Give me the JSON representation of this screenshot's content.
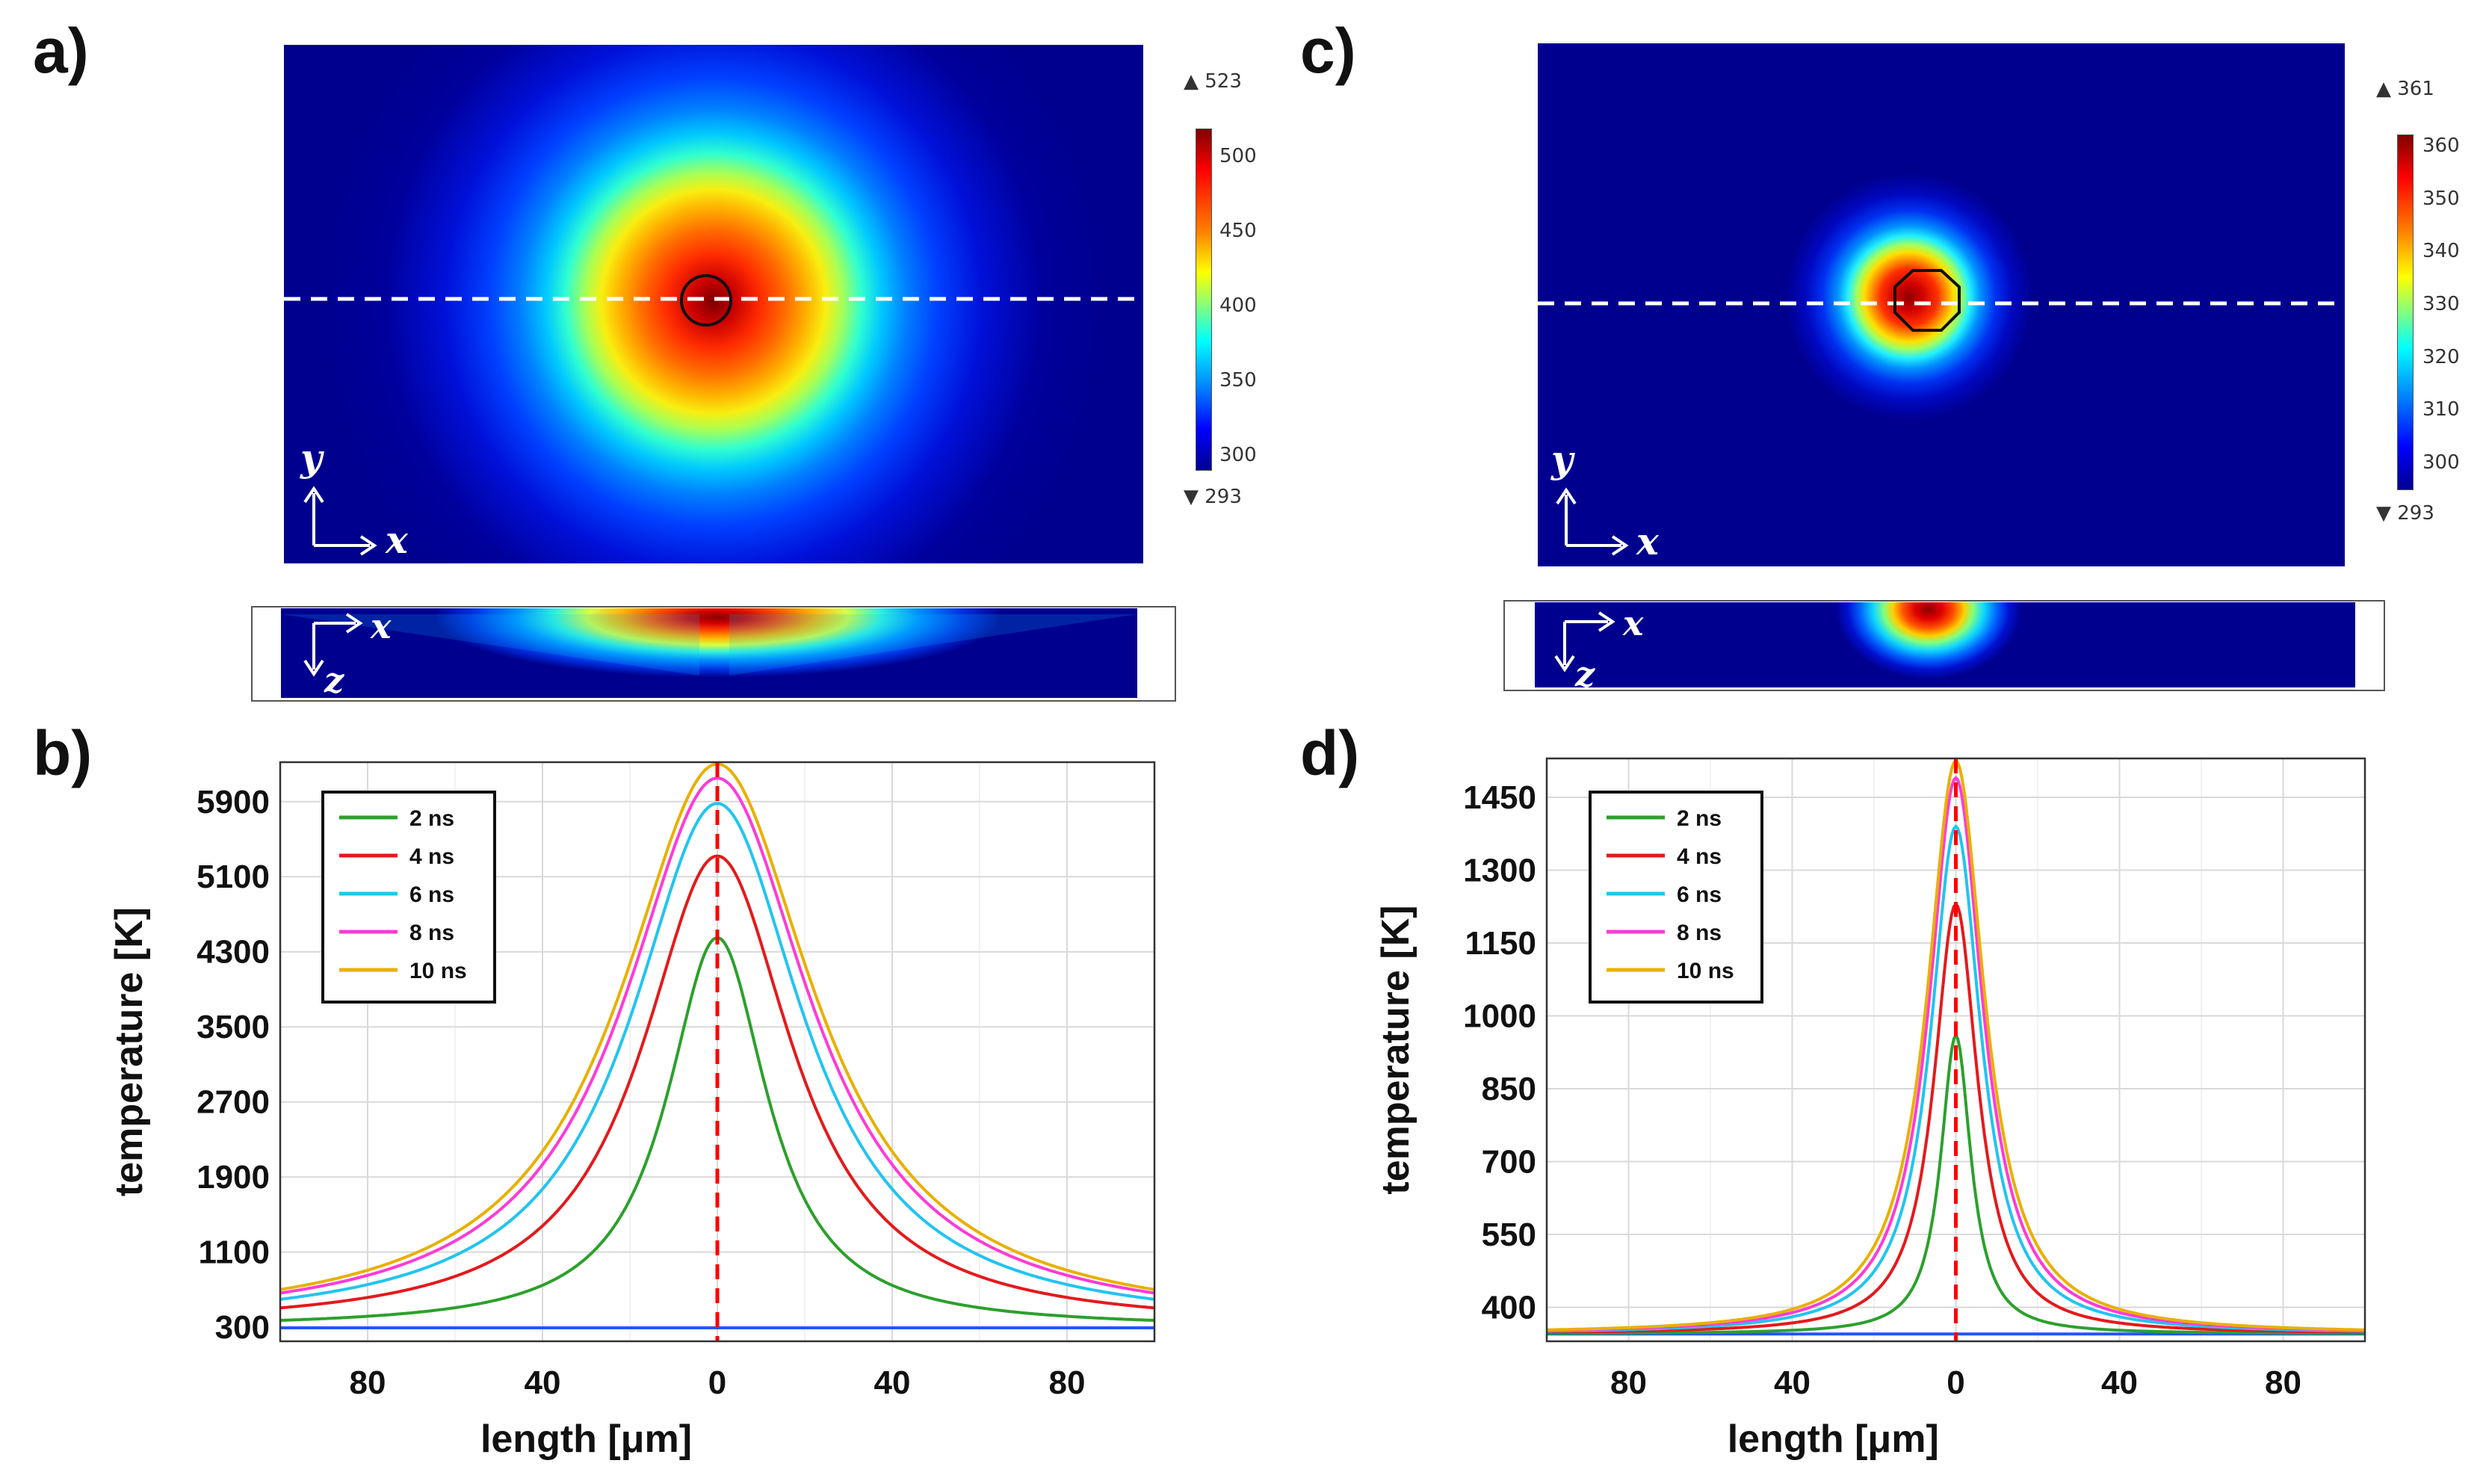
{
  "panels": {
    "a": {
      "label": "a)"
    },
    "b": {
      "label": "b)"
    },
    "c": {
      "label": "c)"
    },
    "d": {
      "label": "d)"
    }
  },
  "colors": {
    "cold": "#00008f",
    "axis_white": "#ffffff",
    "dashed": "#ffffff",
    "center_line": "#ff0000",
    "baseline": "#2255ff"
  },
  "maps": {
    "a": {
      "colorbar": {
        "max_label": "▲ 523",
        "min_label": "▼ 293",
        "ticks": [
          "500",
          "450",
          "400",
          "350",
          "300"
        ]
      },
      "top_axes": {
        "y": "y",
        "x": "x"
      },
      "side_axes": {
        "x": "x",
        "z": "z"
      }
    },
    "c": {
      "colorbar": {
        "max_label": "▲ 361",
        "min_label": "▼ 293",
        "ticks": [
          "360",
          "350",
          "340",
          "330",
          "320",
          "310",
          "300"
        ]
      },
      "top_axes": {
        "y": "y",
        "x": "x"
      },
      "side_axes": {
        "x": "x",
        "z": "z"
      }
    }
  },
  "chart_data": [
    {
      "id": "b",
      "type": "line",
      "title": "",
      "xlabel": "length [μm]",
      "ylabel": "temperature [K]",
      "xlim": [
        -100,
        100
      ],
      "ylim": [
        150,
        6320
      ],
      "x_tick_values": [
        -80,
        -40,
        0,
        40,
        80
      ],
      "x_tick_labels": [
        "80",
        "40",
        "0",
        "40",
        "80"
      ],
      "y_ticks": [
        300,
        1100,
        1900,
        2700,
        3500,
        4300,
        5100,
        5900
      ],
      "grid": true,
      "legend_position": "top-left",
      "center_marker_x": 0,
      "baseline_value": 293,
      "series": [
        {
          "name": "2 ns",
          "color": "#2ca02c",
          "peak": 4450,
          "width": 14
        },
        {
          "name": "4 ns",
          "color": "#e31a1c",
          "peak": 5320,
          "width": 21
        },
        {
          "name": "6 ns",
          "color": "#22c4f0",
          "peak": 5880,
          "width": 24
        },
        {
          "name": "8 ns",
          "color": "#ff3bd6",
          "peak": 6150,
          "width": 26
        },
        {
          "name": "10 ns",
          "color": "#e8b000",
          "peak": 6300,
          "width": 27
        }
      ]
    },
    {
      "id": "d",
      "type": "line",
      "title": "",
      "xlabel": "length [μm]",
      "ylabel": "temperature [K]",
      "xlim": [
        -100,
        100
      ],
      "ylim": [
        330,
        1530
      ],
      "x_tick_values": [
        -80,
        -40,
        0,
        40,
        80
      ],
      "x_tick_labels": [
        "80",
        "40",
        "0",
        "40",
        "80"
      ],
      "y_ticks": [
        400,
        550,
        700,
        850,
        1000,
        1150,
        1300,
        1450
      ],
      "grid": true,
      "legend_position": "top-left",
      "center_marker_x": 0,
      "baseline_value": 345,
      "series": [
        {
          "name": "2 ns",
          "color": "#2ca02c",
          "peak": 960,
          "width": 4.5
        },
        {
          "name": "4 ns",
          "color": "#e31a1c",
          "peak": 1230,
          "width": 6.5
        },
        {
          "name": "6 ns",
          "color": "#22c4f0",
          "peak": 1390,
          "width": 7.5
        },
        {
          "name": "8 ns",
          "color": "#ff3bd6",
          "peak": 1490,
          "width": 8.0
        },
        {
          "name": "10 ns",
          "color": "#e8b000",
          "peak": 1525,
          "width": 8.5
        }
      ]
    }
  ]
}
